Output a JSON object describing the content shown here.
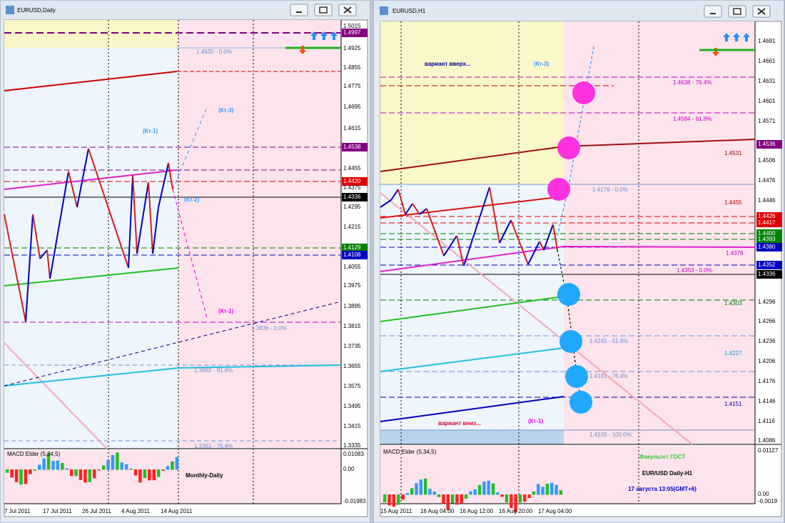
{
  "left_window": {
    "title": "EURUSD,Daily",
    "price_labels": [
      "1.5015",
      "1.4997",
      "1.4925",
      "1.4855",
      "1.4775",
      "1.4695",
      "1.4615",
      "1.4538",
      "1.4455",
      "1.4420",
      "1.4375",
      "1.4336",
      "1.4295",
      "1.4215",
      "1.4129",
      "1.4108",
      "1.4055",
      "1.3975",
      "1.3895",
      "1.3815",
      "1.3735",
      "1.3655",
      "1.3575",
      "1.3495",
      "1.3415",
      "1.3335"
    ],
    "annotations": [
      "1.4930 - 0.0%",
      "(Кт-3)",
      "(Кт-1)",
      "(Кт-2)",
      "(Кт-1)",
      "1.3836 - 0.0%",
      "1.3662 - 61.8%",
      "1.3361 - 76.4%"
    ],
    "macd_title": "MACD Elder (5,34,5)",
    "macd_labels": [
      "0.01083",
      "0.00",
      "-0.01983"
    ],
    "dates": [
      "7 Jul 2011",
      "17 Jul 2011",
      "26 Jul 2011",
      "4 Aug 2011",
      "14 Aug 2011"
    ],
    "watermark": "Monthly-Daily"
  },
  "right_window": {
    "title": "EURUSD,H1",
    "price_labels": [
      "1.4691",
      "1.4661",
      "1.4631",
      "1.4601",
      "1.4571",
      "1.4536",
      "1.4506",
      "1.4476",
      "1.4446",
      "1.4426",
      "1.4417",
      "1.4400",
      "1.4393",
      "1.4380",
      "1.4352",
      "1.4336",
      "1.4296",
      "1.4266",
      "1.4236",
      "1.4206",
      "1.4176",
      "1.4146",
      "1.4116",
      "1.4086"
    ],
    "annotations": [
      "вариант вверх...",
      "(Кт-3)",
      "1.4638 - 76.4%",
      "1.4584 - 61.8%",
      "1.4531",
      "1.4176 - 0.0%",
      "1.4455",
      "1.4379",
      "1.4353 - 0.0%",
      "1.4303",
      "1.4245 - 61.8%",
      "1.4227",
      "1.4191 - 76.4%",
      "1.4151",
      "вариант вниз...",
      "(Кт-1)",
      "1.4103 - 100.0%"
    ],
    "macd_title": "MACD Elder (5,34,5)",
    "macd_labels": [
      "0.01127",
      "0.00",
      "-0.0019"
    ],
    "dates": [
      "15 Aug 2011",
      "16 Aug 04:00",
      "16 Aug 12:00",
      "16 Aug 20:00",
      "17 Aug 04:00"
    ],
    "footer": [
      "Факультет ГОСТ",
      "EUR/USD Daily-H1",
      "17 августа 13:05(GMT+6)"
    ]
  }
}
